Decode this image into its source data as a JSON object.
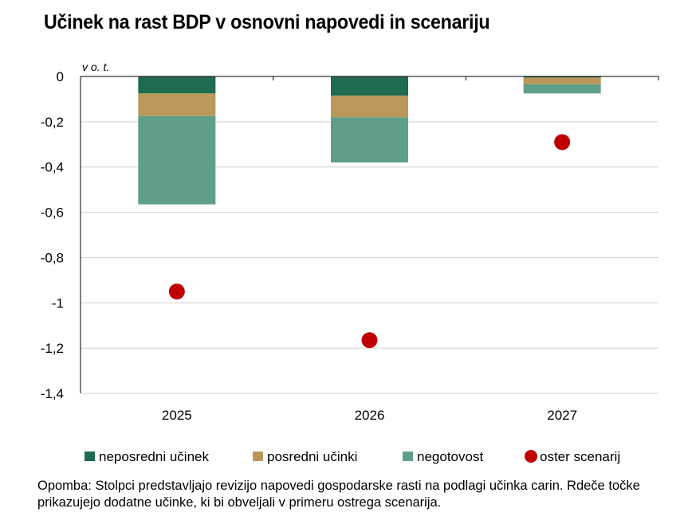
{
  "title": "Učinek na rast BDP v osnovni napovedi in scenariju",
  "footnote": "Opomba: Stolpci predstavljajo revizijo napovedi gospodarske rasti na podlagi učinka carin. Rdeče točke prikazujejo dodatne učinke, ki bi obveljali v primeru ostrega scenarija.",
  "chart_data": {
    "type": "bar",
    "stacked": true,
    "unit_label": "v o. t.",
    "categories": [
      "2025",
      "2026",
      "2027"
    ],
    "ylim": [
      -1.4,
      0
    ],
    "yticks": [
      0,
      -0.2,
      -0.4,
      -0.6,
      -0.8,
      -1,
      -1.2,
      -1.4
    ],
    "ytick_labels": [
      "0",
      "-0,2",
      "-0,4",
      "-0,6",
      "-0,8",
      "-1",
      "-1,2",
      "-1,4"
    ],
    "grid": true,
    "legend_position": "bottom",
    "series": [
      {
        "name": "neposredni učinek",
        "type": "bar",
        "color": "#1f6b4f",
        "values": [
          -0.075,
          -0.085,
          -0.005
        ]
      },
      {
        "name": "posredni učinki",
        "type": "bar",
        "color": "#b9985a",
        "values": [
          -0.1,
          -0.095,
          -0.03
        ]
      },
      {
        "name": "negotovost",
        "type": "bar",
        "color": "#5f9e87",
        "values": [
          -0.39,
          -0.2,
          -0.04
        ]
      },
      {
        "name": "oster scenarij",
        "type": "scatter",
        "color": "#c00000",
        "values": [
          -0.95,
          -1.165,
          -0.29
        ]
      }
    ]
  }
}
